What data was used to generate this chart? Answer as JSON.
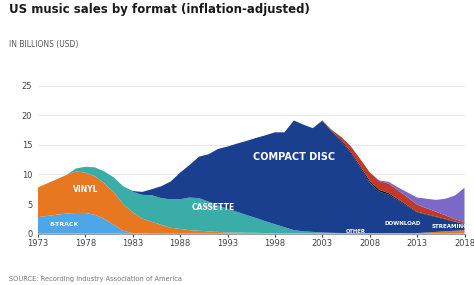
{
  "title": "US music sales by format (inflation-adjusted)",
  "subtitle": "IN BILLIONS (USD)",
  "source": "SOURCE: Recording Industry Association of America",
  "years": [
    1973,
    1974,
    1975,
    1976,
    1977,
    1978,
    1979,
    1980,
    1981,
    1982,
    1983,
    1984,
    1985,
    1986,
    1987,
    1988,
    1989,
    1990,
    1991,
    1992,
    1993,
    1994,
    1995,
    1996,
    1997,
    1998,
    1999,
    2000,
    2001,
    2002,
    2003,
    2004,
    2005,
    2006,
    2007,
    2008,
    2009,
    2010,
    2011,
    2012,
    2013,
    2014,
    2015,
    2016,
    2017,
    2018
  ],
  "eight_track": [
    2.8,
    3.0,
    3.2,
    3.4,
    3.5,
    3.5,
    3.2,
    2.5,
    1.5,
    0.5,
    0.1,
    0.05,
    0.0,
    0.0,
    0.0,
    0.0,
    0.0,
    0.0,
    0.0,
    0.0,
    0.0,
    0.0,
    0.0,
    0.0,
    0.0,
    0.0,
    0.0,
    0.0,
    0.0,
    0.0,
    0.0,
    0.0,
    0.0,
    0.0,
    0.0,
    0.0,
    0.0,
    0.0,
    0.0,
    0.0,
    0.0,
    0.0,
    0.0,
    0.0,
    0.0,
    0.0
  ],
  "vinyl": [
    5.0,
    5.5,
    6.0,
    6.5,
    7.0,
    6.8,
    6.5,
    6.0,
    5.5,
    4.5,
    3.5,
    2.5,
    2.0,
    1.5,
    1.0,
    0.8,
    0.6,
    0.5,
    0.4,
    0.3,
    0.2,
    0.2,
    0.15,
    0.15,
    0.1,
    0.1,
    0.1,
    0.1,
    0.1,
    0.1,
    0.1,
    0.1,
    0.1,
    0.1,
    0.1,
    0.1,
    0.1,
    0.1,
    0.1,
    0.1,
    0.1,
    0.2,
    0.3,
    0.4,
    0.5,
    0.6
  ],
  "cassette": [
    0.0,
    0.0,
    0.0,
    0.0,
    0.5,
    1.0,
    1.5,
    2.0,
    2.5,
    3.0,
    3.5,
    4.0,
    4.5,
    4.5,
    4.8,
    5.0,
    5.5,
    5.5,
    5.0,
    4.5,
    4.0,
    3.5,
    3.0,
    2.5,
    2.0,
    1.5,
    1.0,
    0.5,
    0.3,
    0.2,
    0.1,
    0.05,
    0.02,
    0.01,
    0.0,
    0.0,
    0.0,
    0.0,
    0.0,
    0.0,
    0.0,
    0.0,
    0.0,
    0.0,
    0.0,
    0.0
  ],
  "compact_disc": [
    0.0,
    0.0,
    0.0,
    0.0,
    0.0,
    0.0,
    0.0,
    0.0,
    0.0,
    0.0,
    0.1,
    0.5,
    1.0,
    2.0,
    3.0,
    4.5,
    5.5,
    7.0,
    8.0,
    9.5,
    10.5,
    11.5,
    12.5,
    13.5,
    14.5,
    15.5,
    16.0,
    18.5,
    18.0,
    17.5,
    18.8,
    17.0,
    15.5,
    13.5,
    11.0,
    8.5,
    7.0,
    6.5,
    5.5,
    4.5,
    3.5,
    3.0,
    2.5,
    2.0,
    1.5,
    1.0
  ],
  "other": [
    0.0,
    0.0,
    0.0,
    0.0,
    0.0,
    0.0,
    0.0,
    0.0,
    0.0,
    0.0,
    0.0,
    0.0,
    0.0,
    0.0,
    0.0,
    0.0,
    0.0,
    0.0,
    0.0,
    0.0,
    0.0,
    0.0,
    0.0,
    0.0,
    0.0,
    0.0,
    0.0,
    0.0,
    0.0,
    0.0,
    0.1,
    0.15,
    0.2,
    0.25,
    0.3,
    0.35,
    0.3,
    0.25,
    0.2,
    0.15,
    0.1,
    0.1,
    0.1,
    0.1,
    0.05,
    0.05
  ],
  "download": [
    0.0,
    0.0,
    0.0,
    0.0,
    0.0,
    0.0,
    0.0,
    0.0,
    0.0,
    0.0,
    0.0,
    0.0,
    0.0,
    0.0,
    0.0,
    0.0,
    0.0,
    0.0,
    0.0,
    0.0,
    0.0,
    0.0,
    0.0,
    0.0,
    0.0,
    0.0,
    0.0,
    0.0,
    0.0,
    0.0,
    0.0,
    0.2,
    0.5,
    0.9,
    1.2,
    1.4,
    1.5,
    1.6,
    1.5,
    1.4,
    1.2,
    1.0,
    0.8,
    0.6,
    0.4,
    0.3
  ],
  "streaming": [
    0.0,
    0.0,
    0.0,
    0.0,
    0.0,
    0.0,
    0.0,
    0.0,
    0.0,
    0.0,
    0.0,
    0.0,
    0.0,
    0.0,
    0.0,
    0.0,
    0.0,
    0.0,
    0.0,
    0.0,
    0.0,
    0.0,
    0.0,
    0.0,
    0.0,
    0.0,
    0.0,
    0.0,
    0.0,
    0.0,
    0.0,
    0.0,
    0.0,
    0.0,
    0.0,
    0.0,
    0.1,
    0.3,
    0.5,
    0.8,
    1.2,
    1.6,
    2.0,
    2.8,
    4.0,
    5.8
  ],
  "color_8track": "#4da6e8",
  "color_vinyl": "#e87722",
  "color_cassette": "#3aada8",
  "color_cd": "#1a3f8f",
  "color_other": "#111111",
  "color_download": "#c0392b",
  "color_streaming": "#7b68c8",
  "ylim": [
    0,
    25
  ],
  "yticks": [
    0,
    5,
    10,
    15,
    20,
    25
  ],
  "xticks": [
    1973,
    1978,
    1983,
    1988,
    1993,
    1998,
    2003,
    2008,
    2013,
    2018
  ],
  "background_color": "#ffffff",
  "label_8track": "8-TRACK",
  "label_vinyl": "VINYL",
  "label_cassette": "CASSETTE",
  "label_cd": "COMPACT DISC",
  "label_other": "OTHER",
  "label_download": "DOWNLOAD",
  "label_streaming": "STREAMING"
}
